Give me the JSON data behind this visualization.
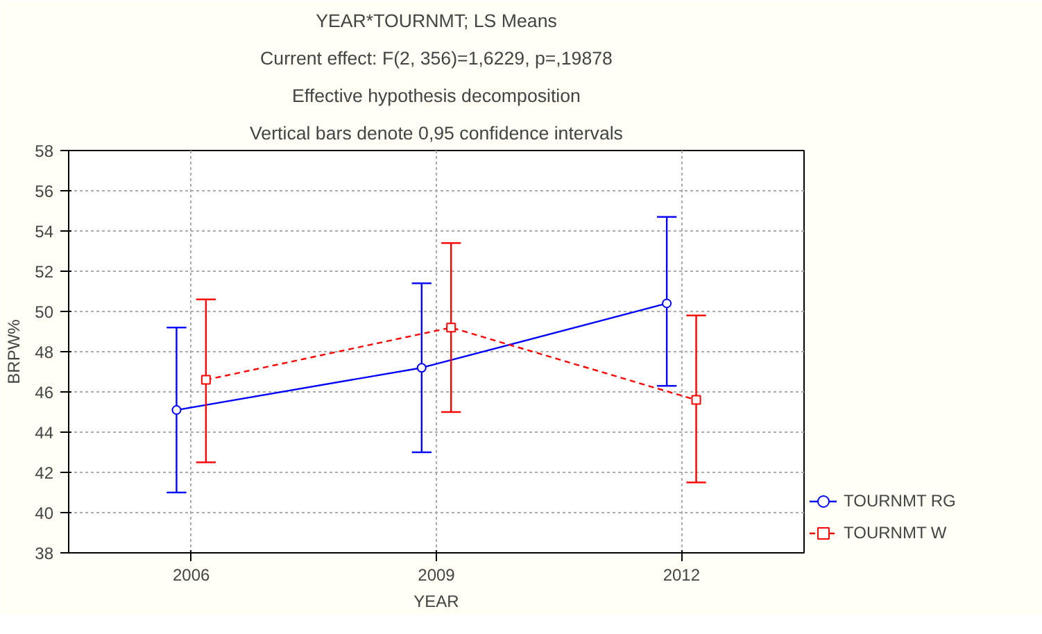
{
  "chart_data": {
    "type": "line",
    "title": "YEAR*TOURNMT; LS Means",
    "subtitle": "Current effect: F(2, 356)=1,6229, p=,19878",
    "annotations": [
      "Effective hypothesis decomposition",
      "Vertical bars denote 0,95 confidence intervals"
    ],
    "xlabel": "YEAR",
    "ylabel": "BRPW%",
    "categories": [
      "2006",
      "2009",
      "2012"
    ],
    "ylim": [
      38,
      58
    ],
    "yticks": [
      38,
      40,
      42,
      44,
      46,
      48,
      50,
      52,
      54,
      56,
      58
    ],
    "grid": true,
    "legend": "right",
    "series": [
      {
        "name": "TOURNMT RG",
        "color": "#0000ff",
        "values": [
          45.1,
          47.2,
          50.4
        ],
        "errors": [
          [
            41.0,
            49.2
          ],
          [
            43.0,
            51.4
          ],
          [
            46.3,
            54.7
          ]
        ],
        "marker": "circle",
        "line_style": "solid"
      },
      {
        "name": "TOURNMT W",
        "color": "#ff0000",
        "values": [
          46.6,
          49.2,
          45.6
        ],
        "errors": [
          [
            42.5,
            50.6
          ],
          [
            45.0,
            53.4
          ],
          [
            41.5,
            49.8
          ]
        ],
        "marker": "square",
        "line_style": "dashed"
      }
    ]
  }
}
